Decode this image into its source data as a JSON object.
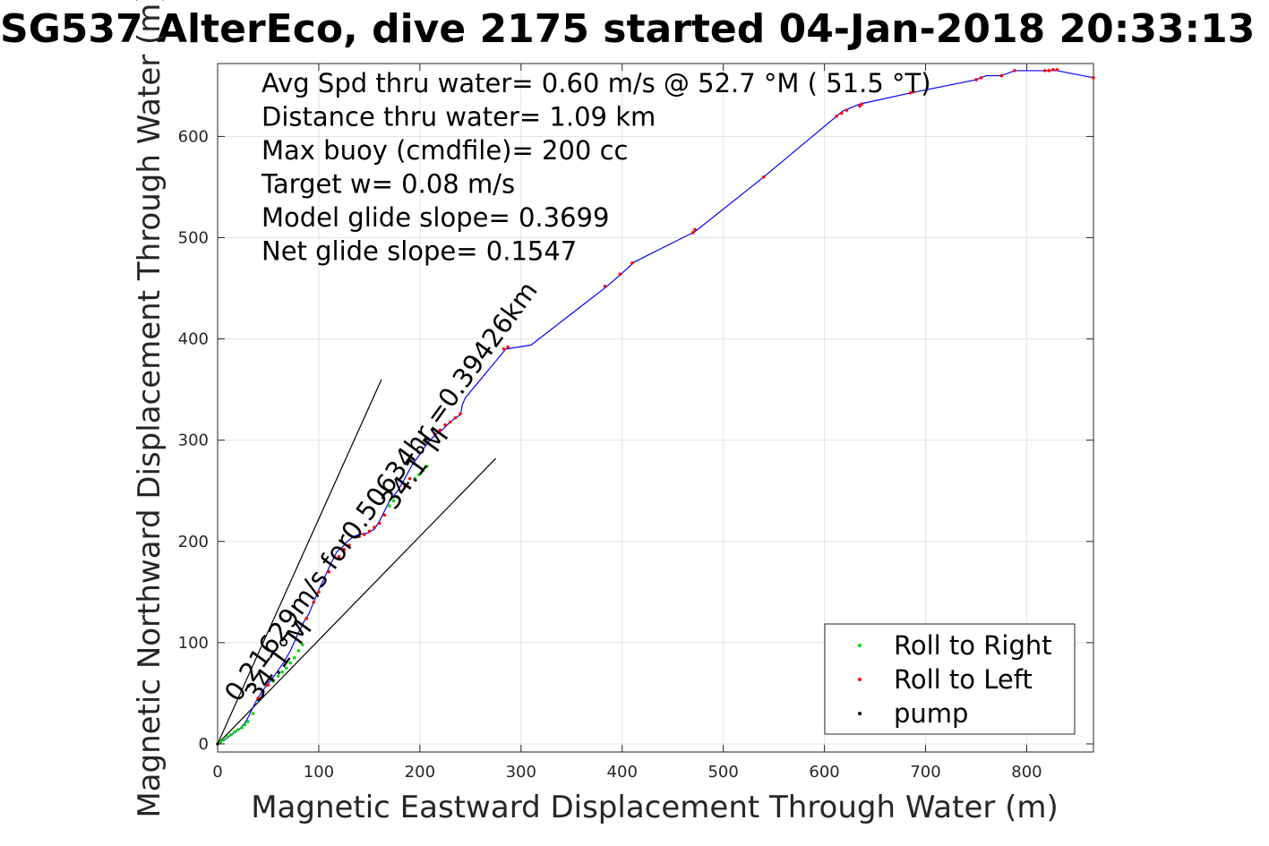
{
  "chart_data": {
    "type": "scatter",
    "title": "SG537 AlterEco, dive 2175 started 04-Jan-2018 20:33:13",
    "xlabel": "Magnetic Eastward Displacement Through Water (m)",
    "ylabel": "Magnetic Northward Displacement Through Water (m)",
    "xlim": [
      0,
      866
    ],
    "ylim": [
      -8,
      672
    ],
    "xticks": [
      0,
      100,
      200,
      300,
      400,
      500,
      600,
      700,
      800
    ],
    "yticks": [
      0,
      100,
      200,
      300,
      400,
      500,
      600
    ],
    "grid": true,
    "legend_position": "bottom-right",
    "legend": [
      "Roll to Right",
      "Roll to Left",
      "pump"
    ],
    "annotations": [
      "Avg Spd thru water=  0.60 m/s @  52.7 °M ( 51.5 °T)",
      "Distance thru water=  1.09 km",
      "Max buoy (cmdfile)= 200 cc",
      "Target w= 0.08 m/s",
      "Model glide slope= 0.3699",
      "Net glide slope= 0.1547"
    ],
    "rotated_labels": [
      {
        "text": "0.21629m/s for0.50634hr =0.39426km",
        "x": 20,
        "y": 40,
        "angle": 54
      },
      {
        "text": "34.1°M",
        "x": 40,
        "y": 40,
        "angle": 54
      },
      {
        "text": "34.1°M",
        "x": 175,
        "y": 230,
        "angle": 54
      }
    ],
    "reference_lines": [
      {
        "x": [
          0,
          162
        ],
        "y": [
          0,
          360
        ]
      },
      {
        "x": [
          0,
          275
        ],
        "y": [
          0,
          282
        ]
      }
    ],
    "series": [
      {
        "name": "track",
        "color": "#0000ff",
        "x": [
          0,
          8,
          15,
          22,
          28,
          33,
          38,
          44,
          52,
          58,
          65,
          72,
          80,
          86,
          90,
          95,
          100,
          106,
          112,
          118,
          124,
          128,
          135,
          140,
          148,
          155,
          160,
          165,
          170,
          178,
          185,
          192,
          200,
          208,
          215,
          222,
          230,
          235,
          240,
          242,
          245,
          285,
          310,
          385,
          400,
          412,
          472,
          540,
          612,
          618,
          635,
          685,
          750,
          760,
          775,
          788,
          820,
          830,
          866
        ],
        "y": [
          0,
          5,
          10,
          15,
          22,
          32,
          42,
          52,
          62,
          70,
          80,
          92,
          110,
          122,
          128,
          140,
          152,
          165,
          178,
          190,
          195,
          200,
          205,
          207,
          208,
          212,
          220,
          230,
          240,
          250,
          262,
          275,
          286,
          298,
          305,
          310,
          318,
          322,
          325,
          335,
          342,
          390,
          394,
          452,
          465,
          476,
          506,
          560,
          620,
          625,
          632,
          643,
          656,
          660,
          660,
          665,
          665,
          665,
          658
        ]
      }
    ],
    "roll_right_points": {
      "color": "#00dd00",
      "x": [
        3,
        6,
        10,
        13,
        17,
        20,
        24,
        27,
        30,
        35,
        55,
        60,
        64,
        68,
        72,
        76,
        80,
        84,
        170,
        174,
        178,
        195,
        199,
        203,
        207
      ],
      "y": [
        2,
        4,
        7,
        9,
        12,
        14,
        16,
        19,
        22,
        30,
        62,
        67,
        71,
        75,
        80,
        85,
        92,
        98,
        235,
        240,
        244,
        262,
        266,
        270,
        274
      ]
    },
    "roll_left_points": {
      "color": "#ff0000",
      "x": [
        0,
        40,
        45,
        50,
        88,
        95,
        100,
        110,
        120,
        125,
        130,
        140,
        145,
        150,
        155,
        160,
        165,
        185,
        190,
        215,
        220,
        225,
        230,
        235,
        240,
        283,
        287,
        383,
        398,
        410,
        470,
        472,
        540,
        612,
        617,
        622,
        635,
        637,
        685,
        688,
        750,
        755,
        775,
        788,
        818,
        822,
        826,
        830,
        866
      ],
      "y": [
        0,
        45,
        52,
        58,
        124,
        140,
        150,
        170,
        185,
        192,
        196,
        205,
        207,
        210,
        214,
        218,
        226,
        255,
        262,
        306,
        310,
        315,
        318,
        322,
        326,
        390,
        392,
        452,
        464,
        475,
        505,
        508,
        560,
        620,
        623,
        626,
        630,
        632,
        643,
        644,
        656,
        658,
        660,
        665,
        665,
        665,
        666,
        666,
        658
      ]
    },
    "pump_points": {
      "color": "#000000",
      "x": [
        0
      ],
      "y": [
        0
      ]
    }
  }
}
